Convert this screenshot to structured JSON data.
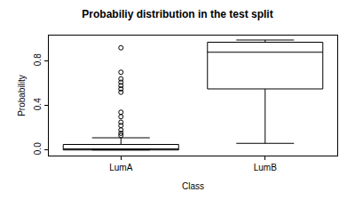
{
  "chart_data": {
    "type": "box",
    "title": "Probabiliy distribution in the test split",
    "x_label": "Class",
    "y_label": "Probability",
    "categories": [
      "LumA",
      "LumB"
    ],
    "q1": [
      0.0,
      0.55
    ],
    "median": [
      0.01,
      0.88
    ],
    "q3": [
      0.05,
      0.97
    ],
    "lowerfence": [
      0.0,
      0.06
    ],
    "upperfence": [
      0.11,
      0.99
    ],
    "outliers": [
      [
        0.92,
        0.7,
        0.64,
        0.61,
        0.58,
        0.55,
        0.52,
        0.34,
        0.3,
        0.25,
        0.22,
        0.18,
        0.15,
        0.13
      ],
      []
    ],
    "color": "#000000",
    "marker": "circle-open",
    "ylim": [
      -0.05,
      1.03
    ],
    "yticks": [
      {
        "value": 0,
        "label": "0.0"
      },
      0.4,
      0.8
    ],
    "grid": false
  }
}
